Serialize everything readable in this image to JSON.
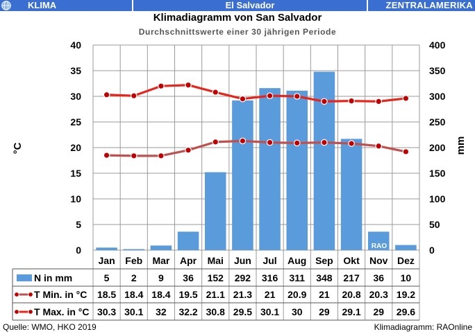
{
  "header": {
    "left_label": "KLIMA",
    "center_label": "El Salvador",
    "right_label": "ZENTRALAMERIKA",
    "bar_color": "#3a6fd1",
    "icon": "globe-icon"
  },
  "footer": {
    "source": "Quelle:  WMO, HKO 2019",
    "credit": "Klimadiagramm:  RAOnline"
  },
  "watermark": "RAO",
  "chart_data": {
    "type": "bar",
    "title": "Klimadiagramm von San Salvador",
    "subtitle": "Durchschnittswerte einer 30 jährigen Periode",
    "ylabel_left": "°C",
    "ylabel_right": "mm",
    "ylim_left": [
      0,
      40
    ],
    "ylim_right": [
      0,
      400
    ],
    "yticks_left": [
      0,
      5,
      10,
      15,
      20,
      25,
      30,
      35,
      40
    ],
    "yticks_right": [
      0,
      50,
      100,
      150,
      200,
      250,
      300,
      350,
      400
    ],
    "grid": true,
    "categories": [
      "Jan",
      "Feb",
      "Mar",
      "Apr",
      "Mai",
      "Jun",
      "Jul",
      "Aug",
      "Sep",
      "Okt",
      "Nov",
      "Dez"
    ],
    "series": [
      {
        "name": "N in mm",
        "kind": "bar",
        "axis": "right",
        "color": "#5a9bdc",
        "values": [
          5,
          2,
          9,
          36,
          152,
          292,
          316,
          311,
          348,
          217,
          36,
          10
        ]
      },
      {
        "name": "T Min. in °C",
        "kind": "line",
        "axis": "left",
        "color": "#c0504d",
        "values": [
          18.5,
          18.4,
          18.4,
          19.5,
          21.1,
          21.3,
          21,
          20.9,
          21,
          20.8,
          20.3,
          19.2
        ]
      },
      {
        "name": "T Max. in °C",
        "kind": "line",
        "axis": "left",
        "color": "#e8251a",
        "values": [
          30.3,
          30.1,
          32,
          32.2,
          30.8,
          29.5,
          30.1,
          30,
          29,
          29.1,
          29,
          29.6
        ]
      }
    ]
  }
}
